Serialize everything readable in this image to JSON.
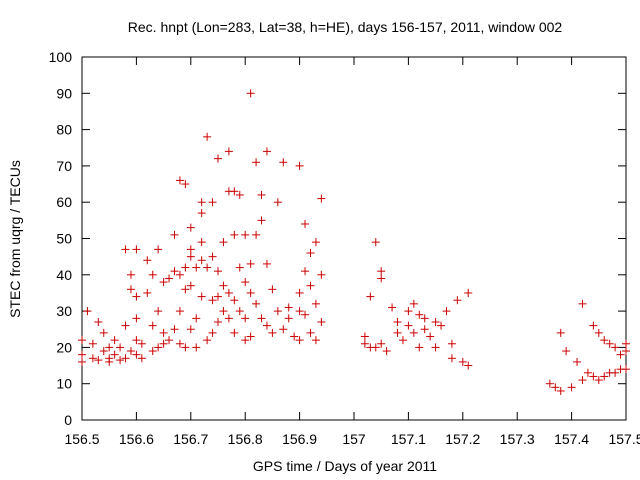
{
  "chart_data": {
    "type": "scatter",
    "title": "Rec. hnpt (Lon=283, Lat=38, h=HE), days 156-157, 2011, window 002",
    "xlabel": "GPS time / Days of year 2011",
    "ylabel": "STEC from uqrg / TECUs",
    "xlim": [
      156.5,
      157.5
    ],
    "ylim": [
      0,
      100
    ],
    "xticks": [
      "156.5",
      "156.6",
      "156.7",
      "156.8",
      "156.9",
      "157",
      "157.1",
      "157.2",
      "157.3",
      "157.4",
      "157.5"
    ],
    "yticks": [
      "0",
      "10",
      "20",
      "30",
      "40",
      "50",
      "60",
      "70",
      "80",
      "90",
      "100"
    ],
    "marker": "+",
    "grid": false,
    "series": [
      {
        "color": "#cc0000",
        "points": [
          [
            156.5,
            16
          ],
          [
            156.5,
            18
          ],
          [
            156.5,
            22
          ],
          [
            156.51,
            30
          ],
          [
            156.52,
            17
          ],
          [
            156.52,
            21
          ],
          [
            156.53,
            27
          ],
          [
            156.53,
            16.5
          ],
          [
            156.54,
            19
          ],
          [
            156.54,
            24
          ],
          [
            156.55,
            17
          ],
          [
            156.55,
            20
          ],
          [
            156.55,
            16
          ],
          [
            156.56,
            22
          ],
          [
            156.56,
            18
          ],
          [
            156.57,
            16.5
          ],
          [
            156.57,
            20
          ],
          [
            156.58,
            26
          ],
          [
            156.58,
            17
          ],
          [
            156.58,
            47
          ],
          [
            156.59,
            40
          ],
          [
            156.59,
            36
          ],
          [
            156.59,
            19
          ],
          [
            156.6,
            34
          ],
          [
            156.6,
            47
          ],
          [
            156.6,
            28
          ],
          [
            156.6,
            22
          ],
          [
            156.6,
            18
          ],
          [
            156.61,
            21
          ],
          [
            156.61,
            17
          ],
          [
            156.62,
            44
          ],
          [
            156.62,
            35
          ],
          [
            156.63,
            40
          ],
          [
            156.63,
            26
          ],
          [
            156.63,
            19
          ],
          [
            156.64,
            30
          ],
          [
            156.64,
            47
          ],
          [
            156.64,
            20
          ],
          [
            156.65,
            38
          ],
          [
            156.65,
            24
          ],
          [
            156.65,
            21
          ],
          [
            156.66,
            39
          ],
          [
            156.66,
            22
          ],
          [
            156.67,
            51
          ],
          [
            156.67,
            41
          ],
          [
            156.67,
            25
          ],
          [
            156.68,
            66
          ],
          [
            156.68,
            40
          ],
          [
            156.68,
            30
          ],
          [
            156.68,
            21
          ],
          [
            156.69,
            65
          ],
          [
            156.69,
            42
          ],
          [
            156.69,
            36
          ],
          [
            156.69,
            20
          ],
          [
            156.7,
            53
          ],
          [
            156.7,
            47
          ],
          [
            156.7,
            45
          ],
          [
            156.7,
            37
          ],
          [
            156.7,
            25
          ],
          [
            156.71,
            42
          ],
          [
            156.71,
            28
          ],
          [
            156.71,
            20
          ],
          [
            156.72,
            60
          ],
          [
            156.72,
            57
          ],
          [
            156.72,
            49
          ],
          [
            156.72,
            44
          ],
          [
            156.72,
            34
          ],
          [
            156.73,
            78
          ],
          [
            156.73,
            42
          ],
          [
            156.73,
            22
          ],
          [
            156.74,
            60
          ],
          [
            156.74,
            45
          ],
          [
            156.74,
            33
          ],
          [
            156.74,
            24
          ],
          [
            156.75,
            72
          ],
          [
            156.75,
            41
          ],
          [
            156.75,
            34
          ],
          [
            156.75,
            27
          ],
          [
            156.76,
            49
          ],
          [
            156.76,
            37
          ],
          [
            156.76,
            30
          ],
          [
            156.77,
            74
          ],
          [
            156.77,
            63
          ],
          [
            156.77,
            35
          ],
          [
            156.77,
            28
          ],
          [
            156.78,
            63
          ],
          [
            156.78,
            51
          ],
          [
            156.78,
            33
          ],
          [
            156.78,
            24
          ],
          [
            156.79,
            62
          ],
          [
            156.79,
            42
          ],
          [
            156.79,
            30
          ],
          [
            156.8,
            51
          ],
          [
            156.8,
            38
          ],
          [
            156.8,
            28
          ],
          [
            156.8,
            22
          ],
          [
            156.81,
            90
          ],
          [
            156.81,
            43
          ],
          [
            156.81,
            35
          ],
          [
            156.81,
            23
          ],
          [
            156.82,
            71
          ],
          [
            156.82,
            51
          ],
          [
            156.82,
            32
          ],
          [
            156.83,
            62
          ],
          [
            156.83,
            55
          ],
          [
            156.83,
            28
          ],
          [
            156.84,
            74
          ],
          [
            156.84,
            43
          ],
          [
            156.84,
            26
          ],
          [
            156.85,
            36
          ],
          [
            156.85,
            24
          ],
          [
            156.86,
            60
          ],
          [
            156.86,
            30
          ],
          [
            156.87,
            71
          ],
          [
            156.87,
            25
          ],
          [
            156.88,
            31
          ],
          [
            156.88,
            28
          ],
          [
            156.89,
            23
          ],
          [
            156.9,
            70
          ],
          [
            156.9,
            35
          ],
          [
            156.9,
            30
          ],
          [
            156.9,
            22
          ],
          [
            156.91,
            54
          ],
          [
            156.91,
            41
          ],
          [
            156.91,
            29
          ],
          [
            156.92,
            46
          ],
          [
            156.92,
            37
          ],
          [
            156.92,
            24
          ],
          [
            156.93,
            49
          ],
          [
            156.93,
            32
          ],
          [
            156.93,
            22
          ],
          [
            156.94,
            61
          ],
          [
            156.94,
            40
          ],
          [
            156.94,
            27
          ],
          [
            157.02,
            23
          ],
          [
            157.02,
            21
          ],
          [
            157.03,
            34
          ],
          [
            157.03,
            20
          ],
          [
            157.04,
            49
          ],
          [
            157.04,
            20
          ],
          [
            157.05,
            41
          ],
          [
            157.05,
            39
          ],
          [
            157.05,
            21
          ],
          [
            157.06,
            19
          ],
          [
            157.07,
            31
          ],
          [
            157.08,
            27
          ],
          [
            157.08,
            24
          ],
          [
            157.09,
            22
          ],
          [
            157.1,
            30
          ],
          [
            157.1,
            26
          ],
          [
            157.11,
            32
          ],
          [
            157.11,
            24
          ],
          [
            157.12,
            29
          ],
          [
            157.12,
            20
          ],
          [
            157.13,
            28
          ],
          [
            157.13,
            25
          ],
          [
            157.14,
            23
          ],
          [
            157.15,
            27
          ],
          [
            157.15,
            20
          ],
          [
            157.16,
            26
          ],
          [
            157.17,
            30
          ],
          [
            157.18,
            21
          ],
          [
            157.18,
            17
          ],
          [
            157.19,
            33
          ],
          [
            157.2,
            16
          ],
          [
            157.21,
            35
          ],
          [
            157.21,
            15
          ],
          [
            157.36,
            10
          ],
          [
            157.37,
            9
          ],
          [
            157.38,
            24
          ],
          [
            157.38,
            8
          ],
          [
            157.39,
            19
          ],
          [
            157.4,
            9
          ],
          [
            157.41,
            16
          ],
          [
            157.42,
            11
          ],
          [
            157.42,
            32
          ],
          [
            157.43,
            13
          ],
          [
            157.44,
            26
          ],
          [
            157.44,
            12
          ],
          [
            157.45,
            24
          ],
          [
            157.45,
            11
          ],
          [
            157.46,
            22
          ],
          [
            157.46,
            12
          ],
          [
            157.47,
            21
          ],
          [
            157.47,
            13
          ],
          [
            157.48,
            20
          ],
          [
            157.48,
            13
          ],
          [
            157.49,
            14
          ],
          [
            157.49,
            18
          ],
          [
            157.5,
            21
          ],
          [
            157.5,
            14
          ],
          [
            157.5,
            19
          ]
        ]
      }
    ]
  }
}
